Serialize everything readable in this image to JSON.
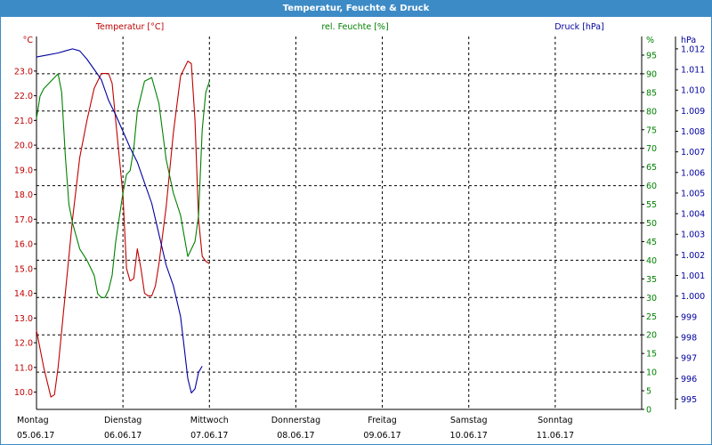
{
  "window": {
    "title": "Temperatur, Feuchte & Druck"
  },
  "colors": {
    "temperature": "#c00000",
    "humidity": "#008000",
    "pressure": "#0000a0",
    "titlebar": "#3d8bc6",
    "grid": "#000000"
  },
  "chart_data": {
    "type": "line",
    "legend_headers": {
      "temperature": "Temperatur [°C]",
      "humidity": "rel. Feuchte [%]",
      "pressure": "Druck [hPa]"
    },
    "grid": true,
    "x_axis": {
      "start_day": "05.06.17",
      "end_day": "12.06.17",
      "ticks": [
        {
          "day": "Montag",
          "date": "05.06.17"
        },
        {
          "day": "Dienstag",
          "date": "06.06.17"
        },
        {
          "day": "Mittwoch",
          "date": "07.06.17"
        },
        {
          "day": "Donnerstag",
          "date": "08.06.17"
        },
        {
          "day": "Freitag",
          "date": "09.06.17"
        },
        {
          "day": "Samstag",
          "date": "10.06.17"
        },
        {
          "day": "Sonntag",
          "date": "11.06.17"
        }
      ]
    },
    "axes": {
      "temperature": {
        "unit": "°C",
        "range": [
          9.3,
          24.4
        ],
        "ticks": [
          "10.0",
          "11.0",
          "12.0",
          "13.0",
          "14.0",
          "15.0",
          "16.0",
          "17.0",
          "18.0",
          "19.0",
          "20.0",
          "21.0",
          "22.0",
          "23.0"
        ]
      },
      "humidity": {
        "unit": "%",
        "range": [
          0,
          100
        ],
        "ticks": [
          "0",
          "5",
          "10",
          "15",
          "20",
          "25",
          "30",
          "35",
          "40",
          "45",
          "50",
          "55",
          "60",
          "65",
          "70",
          "75",
          "80",
          "85",
          "90",
          "95",
          "%"
        ]
      },
      "pressure": {
        "unit": "hPa",
        "range": [
          994.5,
          1012.6
        ],
        "ticks": [
          "995",
          "996",
          "997",
          "998",
          "999",
          "1.000",
          "1.001",
          "1.002",
          "1.003",
          "1.004",
          "1.005",
          "1.006",
          "1.007",
          "1.008",
          "1.009",
          "1.010",
          "1.011",
          "1.012"
        ]
      }
    },
    "series": [
      {
        "name": "Temperatur [°C]",
        "axis": "temperature",
        "x": [
          "05.06.17 00:00",
          "05.06.17 02:00",
          "05.06.17 04:00",
          "05.06.17 05:00",
          "05.06.17 06:00",
          "05.06.17 08:00",
          "05.06.17 10:00",
          "05.06.17 12:00",
          "05.06.17 14:00",
          "05.06.17 16:00",
          "05.06.17 18:00",
          "05.06.17 20:00",
          "05.06.17 21:00",
          "05.06.17 22:00",
          "06.06.17 00:00",
          "06.06.17 01:00",
          "06.06.17 02:00",
          "06.06.17 03:00",
          "06.06.17 04:00",
          "06.06.17 05:00",
          "06.06.17 06:00",
          "06.06.17 07:00",
          "06.06.17 08:00",
          "06.06.17 09:00",
          "06.06.17 10:00",
          "06.06.17 12:00",
          "06.06.17 14:00",
          "06.06.17 16:00",
          "06.06.17 18:00",
          "06.06.17 19:00",
          "06.06.17 20:00",
          "06.06.17 21:00",
          "06.06.17 22:00",
          "06.06.17 23:00",
          "07.06.17 00:00"
        ],
        "y": [
          12.5,
          11.0,
          9.8,
          9.9,
          11.0,
          14.0,
          17.0,
          19.5,
          21.0,
          22.3,
          22.9,
          22.9,
          22.5,
          21.0,
          18.0,
          15.0,
          14.5,
          14.6,
          15.8,
          15.0,
          14.0,
          13.9,
          13.9,
          14.3,
          15.2,
          17.5,
          20.5,
          22.8,
          23.4,
          23.3,
          21.0,
          17.0,
          15.5,
          15.3,
          15.2
        ]
      },
      {
        "name": "rel. Feuchte [%]",
        "axis": "humidity",
        "x": [
          "05.06.17 00:00",
          "05.06.17 01:00",
          "05.06.17 02:00",
          "05.06.17 04:00",
          "05.06.17 06:00",
          "05.06.17 07:00",
          "05.06.17 08:00",
          "05.06.17 09:00",
          "05.06.17 10:00",
          "05.06.17 12:00",
          "05.06.17 14:00",
          "05.06.17 16:00",
          "05.06.17 17:00",
          "05.06.17 18:00",
          "05.06.17 19:00",
          "05.06.17 20:00",
          "05.06.17 21:00",
          "05.06.17 22:00",
          "06.06.17 00:00",
          "06.06.17 01:00",
          "06.06.17 02:00",
          "06.06.17 03:00",
          "06.06.17 04:00",
          "06.06.17 06:00",
          "06.06.17 08:00",
          "06.06.17 10:00",
          "06.06.17 12:00",
          "06.06.17 14:00",
          "06.06.17 15:00",
          "06.06.17 16:00",
          "06.06.17 18:00",
          "06.06.17 20:00",
          "06.06.17 21:00",
          "06.06.17 22:00",
          "06.06.17 23:00",
          "07.06.17 00:00"
        ],
        "y": [
          78,
          84,
          86,
          88,
          90,
          85,
          68,
          55,
          50,
          43,
          40,
          36,
          31,
          30,
          30,
          32,
          36,
          45,
          58,
          63,
          64,
          70,
          80,
          88,
          89,
          82,
          67,
          58,
          55,
          52,
          41,
          45,
          52,
          75,
          85,
          88
        ]
      },
      {
        "name": "Druck [hPa]",
        "axis": "pressure",
        "x": [
          "05.06.17 00:00",
          "05.06.17 03:00",
          "05.06.17 06:00",
          "05.06.17 08:00",
          "05.06.17 10:00",
          "05.06.17 12:00",
          "05.06.17 14:00",
          "05.06.17 16:00",
          "05.06.17 18:00",
          "05.06.17 20:00",
          "05.06.17 22:00",
          "06.06.17 00:00",
          "06.06.17 02:00",
          "06.06.17 04:00",
          "06.06.17 06:00",
          "06.06.17 08:00",
          "06.06.17 10:00",
          "06.06.17 12:00",
          "06.06.17 14:00",
          "06.06.17 16:00",
          "06.06.17 17:00",
          "06.06.17 18:00",
          "06.06.17 19:00",
          "06.06.17 20:00",
          "06.06.17 21:00",
          "06.06.17 22:00"
        ],
        "y": [
          1011.6,
          1011.7,
          1011.8,
          1011.9,
          1012.0,
          1011.9,
          1011.5,
          1011.0,
          1010.5,
          1009.5,
          1008.8,
          1008.0,
          1007.2,
          1006.5,
          1005.5,
          1004.5,
          1003.0,
          1001.5,
          1000.5,
          999.0,
          997.5,
          996.0,
          995.3,
          995.5,
          996.3,
          996.6
        ]
      }
    ]
  }
}
